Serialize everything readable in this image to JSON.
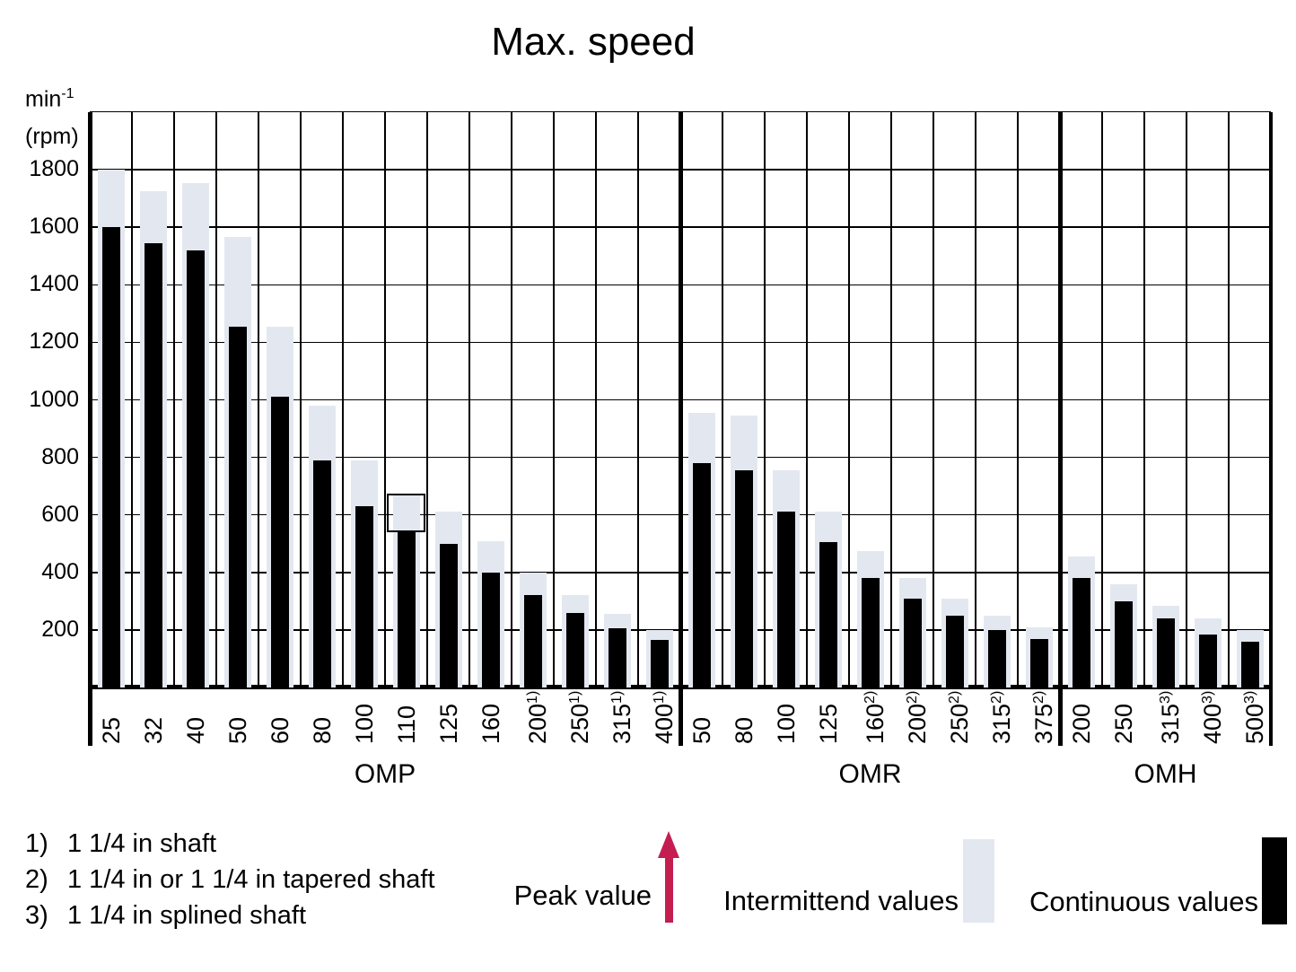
{
  "title": "Max. speed",
  "colors": {
    "continuous_bar": "#000000",
    "intermittent_bar": "#E3E8F0",
    "peak_arrow": "#C41E51",
    "grid": "#000000"
  },
  "footnotes": [
    {
      "marker": "1)",
      "text": "1 1/4 in shaft"
    },
    {
      "marker": "2)",
      "text": "1 1/4 in or 1 1/4 in tapered shaft"
    },
    {
      "marker": "3)",
      "text": "1 1/4 in splined shaft"
    }
  ],
  "chart_data": {
    "type": "bar",
    "title": "Max. speed",
    "ylabel": "min-1 (rpm)",
    "y_axis": {
      "unit_main": "min",
      "unit_sup": "-1",
      "unit_line2": "(rpm)",
      "min": 0,
      "max": 2000,
      "gridline_step": 200,
      "tick_labels": [
        1800,
        1600,
        1400,
        1200,
        1000,
        800,
        600,
        400,
        200
      ]
    },
    "legend": {
      "peak": "Peak value",
      "intermittent": "Intermittend values",
      "continuous": "Continuous values"
    },
    "grid": "on",
    "groups": [
      {
        "name": "OMP",
        "bars": [
          {
            "label": "25",
            "continuous": 1600,
            "intermittent": 1800
          },
          {
            "label": "32",
            "continuous": 1545,
            "intermittent": 1725
          },
          {
            "label": "40",
            "continuous": 1520,
            "intermittent": 1755
          },
          {
            "label": "50",
            "continuous": 1255,
            "intermittent": 1565
          },
          {
            "label": "60",
            "continuous": 1010,
            "intermittent": 1255
          },
          {
            "label": "80",
            "continuous": 790,
            "intermittent": 980
          },
          {
            "label": "100",
            "continuous": 630,
            "intermittent": 790
          },
          {
            "label": "110",
            "continuous": 540,
            "intermittent": 675,
            "outlined_box": true
          },
          {
            "label": "125",
            "continuous": 500,
            "intermittent": 610
          },
          {
            "label": "160",
            "continuous": 400,
            "intermittent": 510
          },
          {
            "label": "200",
            "sup": "1)",
            "continuous": 320,
            "intermittent": 400
          },
          {
            "label": "250",
            "sup": "1)",
            "continuous": 260,
            "intermittent": 320
          },
          {
            "label": "315",
            "sup": "1)",
            "continuous": 205,
            "intermittent": 255
          },
          {
            "label": "400",
            "sup": "1)",
            "continuous": 165,
            "intermittent": 200
          }
        ]
      },
      {
        "name": "OMR",
        "bars": [
          {
            "label": "50",
            "continuous": 780,
            "intermittent": 955
          },
          {
            "label": "80",
            "continuous": 755,
            "intermittent": 945
          },
          {
            "label": "100",
            "continuous": 610,
            "intermittent": 755
          },
          {
            "label": "125",
            "continuous": 505,
            "intermittent": 610
          },
          {
            "label": "160",
            "sup": "2)",
            "continuous": 380,
            "intermittent": 475
          },
          {
            "label": "200",
            "sup": "2)",
            "continuous": 310,
            "intermittent": 380
          },
          {
            "label": "250",
            "sup": "2)",
            "continuous": 250,
            "intermittent": 310
          },
          {
            "label": "315",
            "sup": "2)",
            "continuous": 200,
            "intermittent": 250
          },
          {
            "label": "375",
            "sup": "2)",
            "continuous": 170,
            "intermittent": 210
          }
        ]
      },
      {
        "name": "OMH",
        "bars": [
          {
            "label": "200",
            "continuous": 380,
            "intermittent": 455
          },
          {
            "label": "250",
            "continuous": 300,
            "intermittent": 360
          },
          {
            "label": "315",
            "sup": "3)",
            "continuous": 240,
            "intermittent": 285
          },
          {
            "label": "400",
            "sup": "3)",
            "continuous": 185,
            "intermittent": 240
          },
          {
            "label": "500",
            "sup": "3)",
            "continuous": 160,
            "intermittent": 200
          }
        ]
      }
    ]
  }
}
